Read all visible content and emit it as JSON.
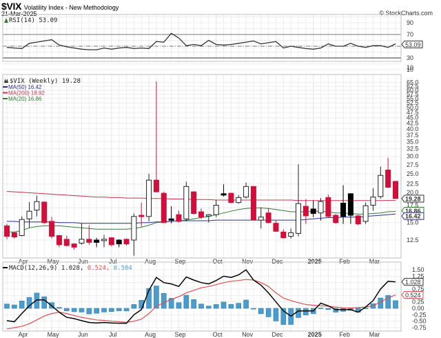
{
  "header": {
    "symbol": "$VIX",
    "name": "Volatility Index - New Methodology",
    "date": "21-Mar-2025",
    "watermark": "© StockCharts.com"
  },
  "chart_data": [
    {
      "panel": "rsi",
      "type": "line",
      "title": "RSI(14) 53.09",
      "label": "RSI(14)",
      "last_value": "53.09",
      "yticks": [
        10,
        30,
        50,
        70,
        90
      ],
      "ylim": [
        0,
        100
      ],
      "reference_lines": [
        30,
        50,
        70
      ],
      "values": [
        48,
        47,
        46,
        55,
        57,
        59,
        61,
        52,
        49,
        47,
        45,
        44,
        44,
        47,
        45,
        47,
        48,
        46,
        47,
        46,
        58,
        57,
        72,
        64,
        51,
        53,
        51,
        60,
        53,
        52,
        53,
        55,
        57,
        59,
        54,
        56,
        58,
        47,
        50,
        48,
        46,
        45,
        47,
        54,
        50,
        50,
        55,
        50,
        48,
        51,
        51,
        48,
        54,
        56,
        61,
        58,
        53
      ]
    },
    {
      "panel": "price",
      "type": "candlestick",
      "title": "$VIX (Weekly) 19.28",
      "label": "$VIX (Weekly)",
      "last_value": "19.28",
      "scale": "log",
      "yticks": [
        12.5,
        15.0,
        17.5,
        20.0,
        22.5,
        25.0,
        27.5,
        30.0,
        32.5,
        35.0,
        37.5,
        40.0,
        42.5,
        45.0,
        47.5,
        50.0,
        52.5,
        55.0,
        57.5,
        60.0,
        62.5,
        65.0
      ],
      "x_labels": [
        "Apr",
        "May",
        "Jun",
        "Jul",
        "Aug",
        "Sep",
        "Oct",
        "Nov",
        "Dec",
        "2025",
        "Feb",
        "Mar"
      ],
      "legend": [
        {
          "name": "MA(50)",
          "value": "16.42",
          "color": "#2b2f8f"
        },
        {
          "name": "MA(200)",
          "value": "18.92",
          "color": "#c8324a"
        },
        {
          "name": "MA(20)",
          "value": "16.86",
          "color": "#2e7d32"
        }
      ],
      "candles": [
        {
          "o": 14.5,
          "h": 14.8,
          "l": 12.6,
          "c": 13.0,
          "t": "down"
        },
        {
          "o": 13.5,
          "h": 13.6,
          "l": 12.7,
          "c": 12.9,
          "t": "down"
        },
        {
          "o": 13.1,
          "h": 16.0,
          "l": 13.0,
          "c": 15.5,
          "t": "up"
        },
        {
          "o": 15.6,
          "h": 18.6,
          "l": 14.2,
          "c": 16.9,
          "t": "up"
        },
        {
          "o": 17.1,
          "h": 19.9,
          "l": 16.0,
          "c": 18.7,
          "t": "up"
        },
        {
          "o": 18.6,
          "h": 18.7,
          "l": 14.8,
          "c": 15.0,
          "t": "down"
        },
        {
          "o": 15.2,
          "h": 15.9,
          "l": 12.7,
          "c": 13.0,
          "t": "down"
        },
        {
          "o": 13.1,
          "h": 13.2,
          "l": 11.6,
          "c": 11.9,
          "t": "down"
        },
        {
          "o": 12.6,
          "h": 13.1,
          "l": 11.7,
          "c": 11.8,
          "t": "down"
        },
        {
          "o": 12.0,
          "h": 12.1,
          "l": 11.3,
          "c": 11.6,
          "t": "down"
        },
        {
          "o": 12.1,
          "h": 14.9,
          "l": 11.9,
          "c": 12.6,
          "t": "up"
        },
        {
          "o": 12.6,
          "h": 14.6,
          "l": 11.9,
          "c": 12.2,
          "t": "down"
        },
        {
          "o": 12.5,
          "h": 12.8,
          "l": 11.6,
          "c": 12.2,
          "t": "down-black"
        },
        {
          "o": 12.6,
          "h": 13.2,
          "l": 11.6,
          "c": 12.5,
          "t": "doji"
        },
        {
          "o": 12.8,
          "h": 12.9,
          "l": 11.7,
          "c": 11.9,
          "t": "down"
        },
        {
          "o": 12.5,
          "h": 12.6,
          "l": 11.6,
          "c": 12.0,
          "t": "down-black"
        },
        {
          "o": 12.6,
          "h": 12.7,
          "l": 11.8,
          "c": 12.0,
          "t": "down"
        },
        {
          "o": 12.5,
          "h": 16.5,
          "l": 10.6,
          "c": 16.0,
          "t": "up"
        },
        {
          "o": 16.0,
          "h": 18.5,
          "l": 14.4,
          "c": 16.2,
          "t": "down"
        },
        {
          "o": 16.0,
          "h": 25.0,
          "l": 15.2,
          "c": 23.4,
          "t": "up"
        },
        {
          "o": 23.4,
          "h": 65.7,
          "l": 20.6,
          "c": 20.7,
          "t": "down"
        },
        {
          "o": 20.4,
          "h": 20.7,
          "l": 15.0,
          "c": 15.0,
          "t": "down"
        },
        {
          "o": 15.6,
          "h": 17.8,
          "l": 14.9,
          "c": 15.6,
          "t": "doji-black"
        },
        {
          "o": 16.3,
          "h": 17.0,
          "l": 15.0,
          "c": 15.2,
          "t": "down"
        },
        {
          "o": 15.6,
          "h": 23.0,
          "l": 15.2,
          "c": 21.9,
          "t": "up"
        },
        {
          "o": 20.7,
          "h": 20.8,
          "l": 16.3,
          "c": 16.5,
          "t": "down"
        },
        {
          "o": 16.8,
          "h": 17.4,
          "l": 15.6,
          "c": 15.9,
          "t": "down"
        },
        {
          "o": 16.3,
          "h": 16.4,
          "l": 15.0,
          "c": 16.2,
          "t": "doji"
        },
        {
          "o": 16.3,
          "h": 19.0,
          "l": 15.9,
          "c": 18.0,
          "t": "up"
        },
        {
          "o": 20.3,
          "h": 22.4,
          "l": 19.7,
          "c": 20.1,
          "t": "doji-black"
        },
        {
          "o": 20.4,
          "h": 20.5,
          "l": 18.4,
          "c": 18.5,
          "t": "down"
        },
        {
          "o": 18.5,
          "h": 20.0,
          "l": 18.3,
          "c": 19.5,
          "t": "up"
        },
        {
          "o": 19.6,
          "h": 22.8,
          "l": 19.3,
          "c": 21.9,
          "t": "up"
        },
        {
          "o": 21.9,
          "h": 21.9,
          "l": 15.3,
          "c": 15.4,
          "t": "down"
        },
        {
          "o": 15.4,
          "h": 17.6,
          "l": 14.1,
          "c": 15.9,
          "t": "up"
        },
        {
          "o": 16.6,
          "h": 17.5,
          "l": 14.9,
          "c": 15.0,
          "t": "down"
        },
        {
          "o": 14.9,
          "h": 15.3,
          "l": 13.6,
          "c": 13.7,
          "t": "down"
        },
        {
          "o": 13.6,
          "h": 14.0,
          "l": 12.7,
          "c": 12.8,
          "t": "down"
        },
        {
          "o": 13.0,
          "h": 14.1,
          "l": 12.7,
          "c": 13.5,
          "t": "up"
        },
        {
          "o": 13.4,
          "h": 27.6,
          "l": 13.0,
          "c": 18.3,
          "t": "up"
        },
        {
          "o": 17.8,
          "h": 19.2,
          "l": 14.8,
          "c": 16.1,
          "t": "down"
        },
        {
          "o": 16.5,
          "h": 18.9,
          "l": 15.9,
          "c": 17.3,
          "t": "down-black"
        },
        {
          "o": 16.6,
          "h": 19.4,
          "l": 15.3,
          "c": 18.7,
          "t": "up"
        },
        {
          "o": 19.5,
          "h": 20.1,
          "l": 15.8,
          "c": 16.0,
          "t": "down"
        },
        {
          "o": 16.2,
          "h": 16.4,
          "l": 14.8,
          "c": 15.0,
          "t": "down"
        },
        {
          "o": 16.0,
          "h": 22.2,
          "l": 14.8,
          "c": 18.4,
          "t": "down-black"
        },
        {
          "o": 20.3,
          "h": 20.4,
          "l": 14.8,
          "c": 16.2,
          "t": "down-black"
        },
        {
          "o": 16.1,
          "h": 16.3,
          "l": 14.6,
          "c": 14.8,
          "t": "down"
        },
        {
          "o": 15.2,
          "h": 18.5,
          "l": 14.8,
          "c": 17.9,
          "t": "up"
        },
        {
          "o": 18.0,
          "h": 21.5,
          "l": 17.0,
          "c": 19.6,
          "t": "up"
        },
        {
          "o": 19.7,
          "h": 27.0,
          "l": 19.3,
          "c": 24.6,
          "t": "up"
        },
        {
          "o": 26.0,
          "h": 29.6,
          "l": 21.6,
          "c": 21.7,
          "t": "down"
        },
        {
          "o": 23.1,
          "h": 23.2,
          "l": 19.3,
          "c": 19.3,
          "t": "down"
        }
      ],
      "ma50": [
        15.2,
        15.2,
        15.1,
        15.1,
        15.1,
        15.1,
        15.1,
        15.0,
        15.0,
        15.0,
        14.9,
        14.9,
        14.9,
        14.9,
        14.9,
        14.9,
        14.9,
        14.9,
        15.0,
        15.0,
        15.1,
        15.1,
        15.2,
        15.3,
        15.3,
        15.3,
        15.3,
        15.3,
        15.4,
        15.4,
        15.4,
        15.4,
        15.4,
        15.4,
        15.4,
        15.4,
        15.4,
        15.4,
        15.4,
        15.4,
        15.5,
        15.6,
        15.7,
        15.8,
        15.8,
        15.9,
        15.9,
        15.9,
        16.0,
        16.1,
        16.2,
        16.3,
        16.42
      ],
      "ma200": [
        20.8,
        20.7,
        20.6,
        20.5,
        20.4,
        20.3,
        20.2,
        20.1,
        20.0,
        19.9,
        19.8,
        19.7,
        19.6,
        19.6,
        19.5,
        19.5,
        19.4,
        19.4,
        19.4,
        19.3,
        19.3,
        19.3,
        19.2,
        19.2,
        19.2,
        19.1,
        19.1,
        19.1,
        19.0,
        19.0,
        19.0,
        19.0,
        19.0,
        19.0,
        19.0,
        19.0,
        19.0,
        19.0,
        19.0,
        18.9,
        18.9,
        18.9,
        18.9,
        18.9,
        18.9,
        18.9,
        18.9,
        18.9,
        18.9,
        18.9,
        18.9,
        18.92,
        18.92
      ],
      "ma20": [
        13.6,
        13.6,
        13.8,
        14.2,
        14.4,
        14.5,
        14.5,
        14.5,
        14.4,
        14.3,
        14.2,
        14.1,
        14.0,
        14.0,
        14.0,
        14.0,
        14.0,
        14.1,
        14.3,
        14.6,
        15.0,
        15.1,
        15.2,
        15.3,
        15.4,
        15.6,
        15.8,
        16.0,
        16.3,
        16.6,
        16.9,
        17.2,
        17.4,
        17.5,
        17.5,
        17.4,
        17.2,
        17.0,
        16.8,
        16.8,
        16.8,
        16.9,
        16.9,
        16.8,
        16.6,
        16.6,
        16.5,
        16.4,
        16.4,
        16.5,
        16.6,
        16.8,
        16.86
      ]
    },
    {
      "panel": "macd",
      "type": "line+bar",
      "title": "MACD(12,26,9) 1.028, 0.524, 0.504",
      "label": "MACD(12,26,9)",
      "macd_value": "1.028",
      "signal_value": "0.524",
      "histogram_value": "0.504",
      "colors": {
        "macd": "#000000",
        "signal": "#e05050",
        "histogram": "#4a9ccc"
      },
      "yticks": [
        -0.75,
        -0.5,
        -0.25,
        0.0,
        0.25,
        0.5,
        0.75,
        1.0,
        1.25,
        1.5
      ],
      "ylim": [
        -0.85,
        1.6
      ],
      "macd": [
        -0.48,
        -0.52,
        -0.2,
        0.1,
        0.33,
        0.33,
        0.1,
        -0.15,
        -0.35,
        -0.4,
        -0.48,
        -0.55,
        -0.57,
        -0.55,
        -0.57,
        -0.58,
        -0.58,
        -0.25,
        -0.05,
        0.7,
        1.2,
        1.0,
        0.95,
        0.85,
        1.22,
        1.1,
        1.0,
        0.95,
        1.08,
        1.25,
        1.2,
        1.3,
        1.5,
        1.1,
        0.9,
        0.6,
        0.25,
        -0.1,
        -0.3,
        -0.1,
        -0.1,
        -0.1,
        0.2,
        0.1,
        -0.05,
        -0.05,
        -0.05,
        -0.15,
        0.05,
        0.3,
        0.75,
        1.05,
        1.03
      ],
      "signal": [
        -0.8,
        -0.75,
        -0.7,
        -0.6,
        -0.45,
        -0.3,
        -0.2,
        -0.15,
        -0.2,
        -0.28,
        -0.35,
        -0.4,
        -0.45,
        -0.47,
        -0.5,
        -0.52,
        -0.55,
        -0.5,
        -0.42,
        -0.2,
        0.08,
        0.22,
        0.35,
        0.45,
        0.6,
        0.7,
        0.8,
        0.85,
        0.92,
        1.0,
        1.05,
        1.08,
        1.12,
        1.1,
        1.0,
        0.85,
        0.6,
        0.4,
        0.3,
        0.22,
        0.15,
        0.12,
        0.1,
        0.08,
        0.05,
        0.02,
        0.02,
        0.03,
        0.05,
        0.1,
        0.25,
        0.4,
        0.52
      ],
      "histogram": [
        0.28,
        0.22,
        0.48,
        0.71,
        0.99,
        0.75,
        0.37,
        0.06,
        -0.16,
        -0.22,
        -0.24,
        -0.36,
        -0.32,
        -0.24,
        -0.21,
        -0.16,
        -0.17,
        0.25,
        0.52,
        1.29,
        1.45,
        0.97,
        0.65,
        0.37,
        0.85,
        0.57,
        0.28,
        0.15,
        0.25,
        0.41,
        0.26,
        0.33,
        0.54,
        -0.05,
        -0.35,
        -0.55,
        -0.82,
        -1.05,
        -1.05,
        -0.6,
        -0.43,
        -0.35,
        0.02,
        -0.08,
        -0.25,
        -0.2,
        -0.13,
        -0.25,
        0.02,
        0.3,
        0.67,
        0.84,
        0.5
      ]
    }
  ]
}
